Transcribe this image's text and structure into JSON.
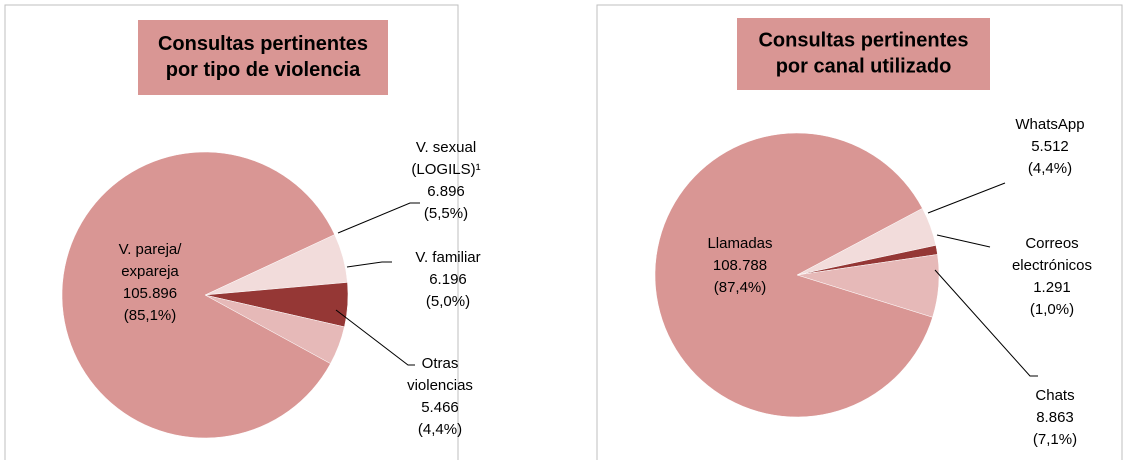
{
  "chart_data": [
    {
      "type": "pie",
      "title": [
        "Consultas pertinentes",
        "por tipo de violencia"
      ],
      "categories": [
        [
          "V. sexual",
          "(LOGILS)¹"
        ],
        [
          "V. familiar"
        ],
        [
          "Otras",
          "violencias"
        ],
        [
          "V. pareja/",
          "expareja"
        ]
      ],
      "values": [
        6896,
        6196,
        5466,
        105896
      ],
      "value_labels": [
        "6.896",
        "6.196",
        "5.466",
        "105.896"
      ],
      "percent_labels": [
        "(5,5%)",
        "(5,0%)",
        "(4,4%)",
        "(85,1%)"
      ],
      "colors": [
        "#f2dcdb",
        "#953735",
        "#e6b9b8",
        "#d99694"
      ]
    },
    {
      "type": "pie",
      "title": [
        "Consultas pertinentes",
        "por canal utilizado"
      ],
      "categories": [
        [
          "WhatsApp"
        ],
        [
          "Correos",
          "electrónicos"
        ],
        [
          "Chats"
        ],
        [
          "Llamadas"
        ]
      ],
      "values": [
        5512,
        1291,
        8863,
        108788
      ],
      "value_labels": [
        "5.512",
        "1.291",
        "8.863",
        "108.788"
      ],
      "percent_labels": [
        "(4,4%)",
        "(1,0%)",
        "(7,1%)",
        "(87,4%)"
      ],
      "colors": [
        "#f2dcdb",
        "#953735",
        "#e6b9b8",
        "#d99694"
      ]
    }
  ]
}
